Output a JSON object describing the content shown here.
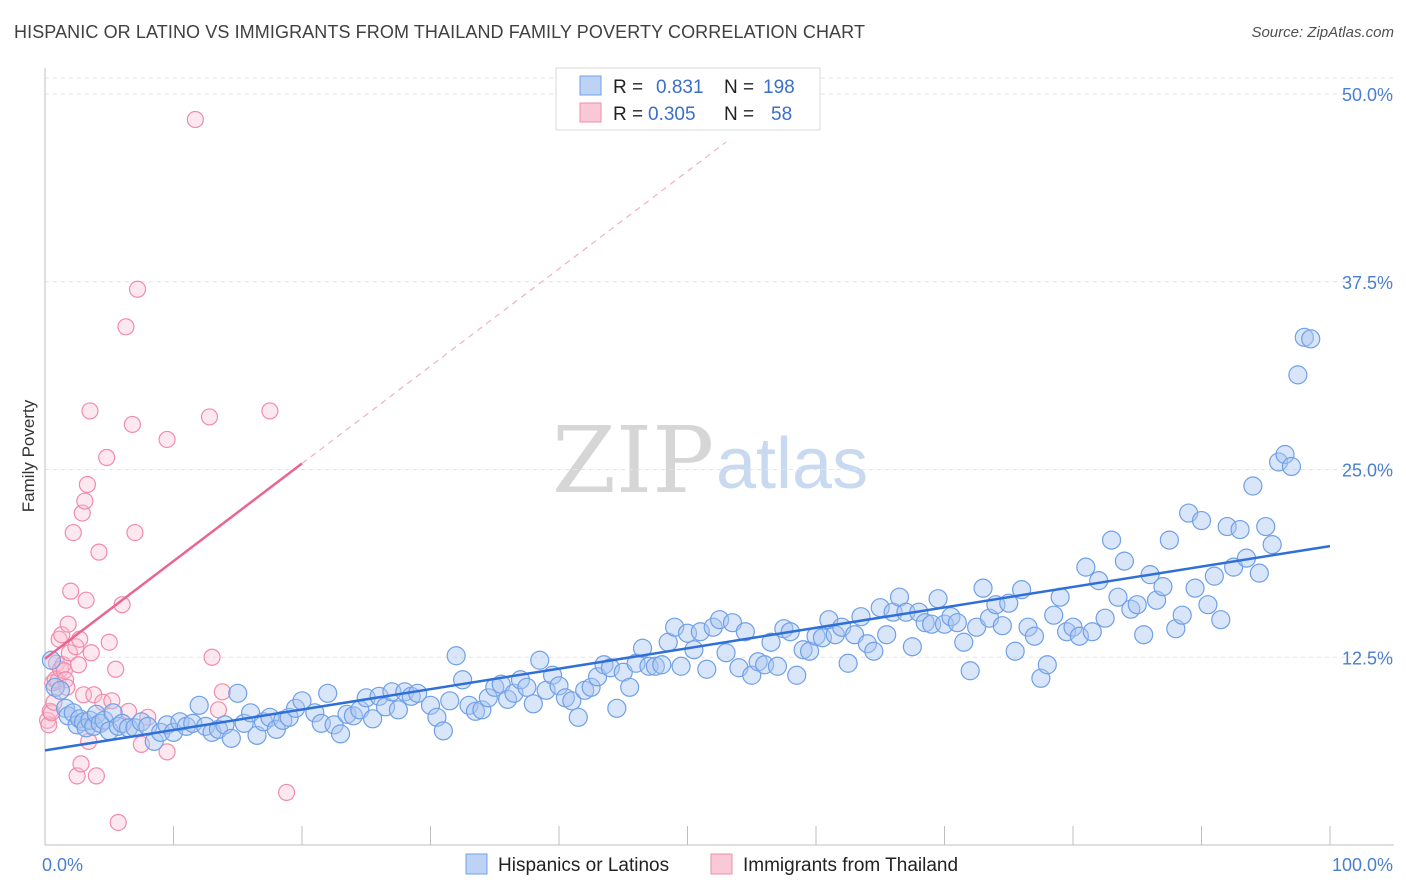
{
  "header": {
    "title": "HISPANIC OR LATINO VS IMMIGRANTS FROM THAILAND FAMILY POVERTY CORRELATION CHART",
    "source": "Source: ZipAtlas.com"
  },
  "watermark": {
    "zip": "ZIP",
    "atlas": "atlas"
  },
  "stats": [
    {
      "r_label": "R =",
      "r_value": "0.831",
      "n_label": "N =",
      "n_value": "198",
      "color": "#6fa0e8"
    },
    {
      "r_label": "R =",
      "r_value": "0.305",
      "n_label": "N =",
      "n_value": "58",
      "color": "#f08cab"
    }
  ],
  "chart_data": {
    "type": "scatter",
    "title": "HISPANIC OR LATINO VS IMMIGRANTS FROM THAILAND FAMILY POVERTY CORRELATION CHART",
    "xlabel": "",
    "ylabel": "Family Poverty",
    "xlim": [
      0,
      100
    ],
    "ylim": [
      0,
      50
    ],
    "x_tick_labels": [
      {
        "value": 0,
        "label": "0.0%"
      },
      {
        "value": 100,
        "label": "100.0%"
      }
    ],
    "y_tick_labels": [
      {
        "value": 12.5,
        "label": "12.5%"
      },
      {
        "value": 25,
        "label": "25.0%"
      },
      {
        "value": 37.5,
        "label": "37.5%"
      },
      {
        "value": 50,
        "label": "50.0%"
      }
    ],
    "legend": [
      "Hispanics or Latinos",
      "Immigrants from Thailand"
    ],
    "series": [
      {
        "name": "Hispanics or Latinos",
        "color": "#6fa0e8",
        "r": 0.831,
        "n": 198,
        "trend": {
          "x0": 0,
          "y0": 6.3,
          "x1": 100,
          "y1": 19.9
        },
        "points": [
          [
            0.5,
            12.3
          ],
          [
            0.8,
            10.5
          ],
          [
            1.2,
            10.3
          ],
          [
            1.6,
            9.1
          ],
          [
            1.8,
            8.6
          ],
          [
            2.2,
            8.8
          ],
          [
            2.5,
            8.0
          ],
          [
            2.7,
            8.4
          ],
          [
            3.0,
            8.2
          ],
          [
            3.2,
            7.8
          ],
          [
            3.5,
            8.3
          ],
          [
            3.8,
            7.9
          ],
          [
            4.0,
            8.7
          ],
          [
            4.3,
            8.1
          ],
          [
            4.6,
            8.3
          ],
          [
            5.0,
            7.6
          ],
          [
            5.3,
            8.8
          ],
          [
            5.7,
            7.9
          ],
          [
            6.0,
            8.1
          ],
          [
            6.5,
            7.8
          ],
          [
            7.0,
            7.8
          ],
          [
            7.5,
            8.2
          ],
          [
            8.0,
            7.9
          ],
          [
            8.5,
            6.9
          ],
          [
            9.0,
            7.5
          ],
          [
            9.5,
            8.0
          ],
          [
            10.0,
            7.5
          ],
          [
            10.5,
            8.2
          ],
          [
            11.0,
            7.9
          ],
          [
            11.5,
            8.1
          ],
          [
            12.0,
            9.3
          ],
          [
            12.5,
            7.9
          ],
          [
            13.0,
            7.5
          ],
          [
            13.5,
            7.7
          ],
          [
            14.0,
            8.0
          ],
          [
            14.5,
            7.1
          ],
          [
            15.0,
            10.1
          ],
          [
            15.5,
            8.1
          ],
          [
            16.0,
            8.8
          ],
          [
            16.5,
            7.3
          ],
          [
            17.0,
            8.2
          ],
          [
            17.5,
            8.5
          ],
          [
            18.0,
            7.7
          ],
          [
            18.5,
            8.3
          ],
          [
            19.0,
            8.5
          ],
          [
            19.5,
            9.1
          ],
          [
            20.0,
            9.6
          ],
          [
            21.0,
            8.8
          ],
          [
            21.5,
            8.1
          ],
          [
            22.0,
            10.1
          ],
          [
            22.5,
            8.0
          ],
          [
            23.0,
            7.4
          ],
          [
            23.5,
            8.7
          ],
          [
            24.0,
            8.6
          ],
          [
            24.5,
            9.0
          ],
          [
            25.0,
            9.8
          ],
          [
            25.5,
            8.4
          ],
          [
            26.0,
            9.9
          ],
          [
            26.5,
            9.2
          ],
          [
            27.0,
            10.2
          ],
          [
            27.5,
            9.0
          ],
          [
            28.0,
            10.2
          ],
          [
            28.5,
            9.9
          ],
          [
            29.0,
            10.1
          ],
          [
            30.0,
            9.3
          ],
          [
            30.5,
            8.5
          ],
          [
            31.0,
            7.6
          ],
          [
            31.5,
            9.6
          ],
          [
            32.0,
            12.6
          ],
          [
            32.5,
            11.0
          ],
          [
            33.0,
            9.3
          ],
          [
            33.5,
            8.9
          ],
          [
            34.0,
            9.0
          ],
          [
            34.5,
            9.8
          ],
          [
            35.0,
            10.5
          ],
          [
            35.5,
            10.7
          ],
          [
            36.0,
            9.7
          ],
          [
            36.5,
            10.1
          ],
          [
            37.0,
            11.0
          ],
          [
            37.5,
            10.5
          ],
          [
            38.0,
            9.4
          ],
          [
            38.5,
            12.3
          ],
          [
            39.0,
            10.3
          ],
          [
            39.5,
            11.3
          ],
          [
            40.0,
            10.6
          ],
          [
            40.5,
            9.8
          ],
          [
            41.0,
            9.6
          ],
          [
            41.5,
            8.5
          ],
          [
            42.0,
            10.3
          ],
          [
            42.5,
            10.5
          ],
          [
            43.0,
            11.2
          ],
          [
            43.5,
            12.0
          ],
          [
            44.0,
            11.8
          ],
          [
            44.5,
            9.1
          ],
          [
            45.0,
            11.5
          ],
          [
            45.5,
            10.5
          ],
          [
            46.0,
            12.1
          ],
          [
            46.5,
            13.1
          ],
          [
            47.0,
            11.9
          ],
          [
            47.5,
            11.9
          ],
          [
            48.0,
            12.0
          ],
          [
            48.5,
            13.5
          ],
          [
            49.0,
            14.5
          ],
          [
            49.5,
            11.9
          ],
          [
            50.0,
            14.1
          ],
          [
            50.5,
            13.0
          ],
          [
            51.0,
            14.2
          ],
          [
            51.5,
            11.7
          ],
          [
            52.0,
            14.5
          ],
          [
            52.5,
            15.0
          ],
          [
            53.0,
            12.8
          ],
          [
            53.5,
            14.8
          ],
          [
            54.0,
            11.8
          ],
          [
            54.5,
            14.2
          ],
          [
            55.0,
            11.3
          ],
          [
            55.5,
            12.2
          ],
          [
            56.0,
            12.0
          ],
          [
            56.5,
            13.5
          ],
          [
            57.0,
            11.9
          ],
          [
            57.5,
            14.4
          ],
          [
            58.0,
            14.2
          ],
          [
            58.5,
            11.3
          ],
          [
            59.0,
            13.0
          ],
          [
            59.5,
            12.9
          ],
          [
            60.0,
            13.9
          ],
          [
            60.5,
            13.8
          ],
          [
            61.0,
            15.0
          ],
          [
            61.5,
            14.0
          ],
          [
            62.0,
            14.5
          ],
          [
            62.5,
            12.1
          ],
          [
            63.0,
            14.0
          ],
          [
            63.5,
            15.2
          ],
          [
            64.0,
            13.4
          ],
          [
            64.5,
            12.9
          ],
          [
            65.0,
            15.8
          ],
          [
            65.5,
            14.0
          ],
          [
            66.0,
            15.5
          ],
          [
            66.5,
            16.5
          ],
          [
            67.0,
            15.5
          ],
          [
            67.5,
            13.2
          ],
          [
            68.0,
            15.5
          ],
          [
            68.5,
            14.8
          ],
          [
            69.0,
            14.7
          ],
          [
            69.5,
            16.4
          ],
          [
            70.0,
            14.7
          ],
          [
            70.5,
            15.2
          ],
          [
            71.0,
            14.8
          ],
          [
            71.5,
            13.5
          ],
          [
            72.0,
            11.6
          ],
          [
            72.5,
            14.5
          ],
          [
            73.0,
            17.1
          ],
          [
            73.5,
            15.1
          ],
          [
            74.0,
            16.0
          ],
          [
            74.5,
            14.6
          ],
          [
            75.0,
            16.1
          ],
          [
            75.5,
            12.9
          ],
          [
            76.0,
            17.0
          ],
          [
            76.5,
            14.5
          ],
          [
            77.0,
            13.9
          ],
          [
            77.5,
            11.1
          ],
          [
            78.0,
            12.0
          ],
          [
            78.5,
            15.3
          ],
          [
            79.0,
            16.5
          ],
          [
            79.5,
            14.2
          ],
          [
            80.0,
            14.5
          ],
          [
            80.5,
            13.9
          ],
          [
            81.0,
            18.5
          ],
          [
            81.5,
            14.2
          ],
          [
            82.0,
            17.6
          ],
          [
            82.5,
            15.1
          ],
          [
            83.0,
            20.3
          ],
          [
            83.5,
            16.5
          ],
          [
            84.0,
            18.9
          ],
          [
            84.5,
            15.7
          ],
          [
            85.0,
            16.0
          ],
          [
            85.5,
            14.0
          ],
          [
            86.0,
            18.0
          ],
          [
            86.5,
            16.3
          ],
          [
            87.0,
            17.2
          ],
          [
            87.5,
            20.3
          ],
          [
            88.0,
            14.4
          ],
          [
            88.5,
            15.3
          ],
          [
            89.0,
            22.1
          ],
          [
            89.5,
            17.1
          ],
          [
            90.0,
            21.6
          ],
          [
            90.5,
            16.0
          ],
          [
            91.0,
            17.9
          ],
          [
            91.5,
            15.0
          ],
          [
            92.0,
            21.2
          ],
          [
            92.5,
            18.5
          ],
          [
            93.0,
            21.0
          ],
          [
            93.5,
            19.1
          ],
          [
            94.0,
            23.9
          ],
          [
            94.5,
            18.1
          ],
          [
            95.0,
            21.2
          ],
          [
            95.5,
            20.0
          ],
          [
            96.0,
            25.5
          ],
          [
            96.5,
            26.0
          ],
          [
            97.0,
            25.2
          ],
          [
            97.5,
            31.3
          ],
          [
            98.0,
            33.8
          ],
          [
            98.5,
            33.7
          ]
        ]
      },
      {
        "name": "Immigrants from Thailand",
        "color": "#f08cab",
        "r": 0.305,
        "n": 58,
        "trend": {
          "x0": 0,
          "y0": 12.4,
          "x1": 20,
          "y1": 25.4
        },
        "trend_ext": {
          "x0": 20,
          "y0": 25.4,
          "x1": 53,
          "y1": 46.8
        },
        "points": [
          [
            0.2,
            8.3
          ],
          [
            0.3,
            8.0
          ],
          [
            0.4,
            8.9
          ],
          [
            0.5,
            8.8
          ],
          [
            0.6,
            10.8
          ],
          [
            0.7,
            9.5
          ],
          [
            0.8,
            11.0
          ],
          [
            0.9,
            12.1
          ],
          [
            1.0,
            10.9
          ],
          [
            1.1,
            13.7
          ],
          [
            1.2,
            11.7
          ],
          [
            1.3,
            14.0
          ],
          [
            1.4,
            12.0
          ],
          [
            1.5,
            11.6
          ],
          [
            1.6,
            11.0
          ],
          [
            1.7,
            10.5
          ],
          [
            1.8,
            14.7
          ],
          [
            1.9,
            12.8
          ],
          [
            2.0,
            16.9
          ],
          [
            2.2,
            20.8
          ],
          [
            2.4,
            13.2
          ],
          [
            2.5,
            4.6
          ],
          [
            2.6,
            12.0
          ],
          [
            2.7,
            13.7
          ],
          [
            2.8,
            5.4
          ],
          [
            2.9,
            22.1
          ],
          [
            3.0,
            10.0
          ],
          [
            3.1,
            22.9
          ],
          [
            3.2,
            16.3
          ],
          [
            3.3,
            24.0
          ],
          [
            3.4,
            6.9
          ],
          [
            3.5,
            28.9
          ],
          [
            3.6,
            12.8
          ],
          [
            3.8,
            10.0
          ],
          [
            4.0,
            4.6
          ],
          [
            4.2,
            19.5
          ],
          [
            4.5,
            9.5
          ],
          [
            4.8,
            25.8
          ],
          [
            5.0,
            13.5
          ],
          [
            5.2,
            9.6
          ],
          [
            5.5,
            11.7
          ],
          [
            5.7,
            1.5
          ],
          [
            6.0,
            16.0
          ],
          [
            6.3,
            34.5
          ],
          [
            6.5,
            8.9
          ],
          [
            6.8,
            28.0
          ],
          [
            7.0,
            20.8
          ],
          [
            7.2,
            37.0
          ],
          [
            7.5,
            6.7
          ],
          [
            8.0,
            8.5
          ],
          [
            9.5,
            27.0
          ],
          [
            9.5,
            6.2
          ],
          [
            11.7,
            48.3
          ],
          [
            12.8,
            28.5
          ],
          [
            13.0,
            12.5
          ],
          [
            13.5,
            9.0
          ],
          [
            13.8,
            10.2
          ],
          [
            17.5,
            28.9
          ],
          [
            18.8,
            3.5
          ]
        ]
      }
    ]
  }
}
